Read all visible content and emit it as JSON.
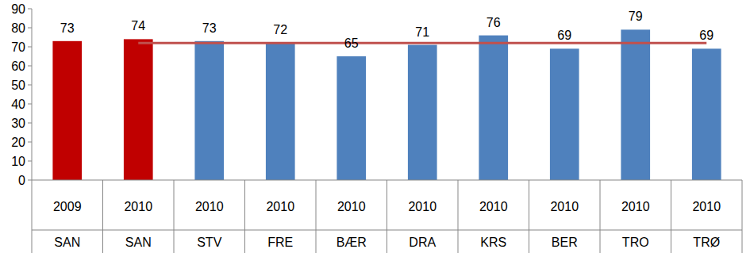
{
  "chart_data": {
    "type": "bar",
    "categories": [
      [
        "2009",
        "SAN"
      ],
      [
        "2010",
        "SAN"
      ],
      [
        "2010",
        "STV"
      ],
      [
        "2010",
        "FRE"
      ],
      [
        "2010",
        "BÆR"
      ],
      [
        "2010",
        "DRA"
      ],
      [
        "2010",
        "KRS"
      ],
      [
        "2010",
        "BER"
      ],
      [
        "2010",
        "TRO"
      ],
      [
        "2010",
        "TRØ"
      ]
    ],
    "series": [
      {
        "type": "bar",
        "values": [
          73,
          74,
          73,
          72,
          65,
          71,
          76,
          69,
          79,
          69
        ],
        "colors": [
          "#c00000",
          "#c00000",
          "#4f81bd",
          "#4f81bd",
          "#4f81bd",
          "#4f81bd",
          "#4f81bd",
          "#4f81bd",
          "#4f81bd",
          "#4f81bd"
        ],
        "data_labels": true
      },
      {
        "type": "line",
        "color": "#c0504d",
        "values": [
          null,
          72,
          72,
          72,
          72,
          72,
          72,
          72,
          72,
          72
        ]
      }
    ],
    "ylim": [
      0,
      90
    ],
    "yticks": [
      0,
      10,
      20,
      30,
      40,
      50,
      60,
      70,
      80,
      90
    ]
  }
}
